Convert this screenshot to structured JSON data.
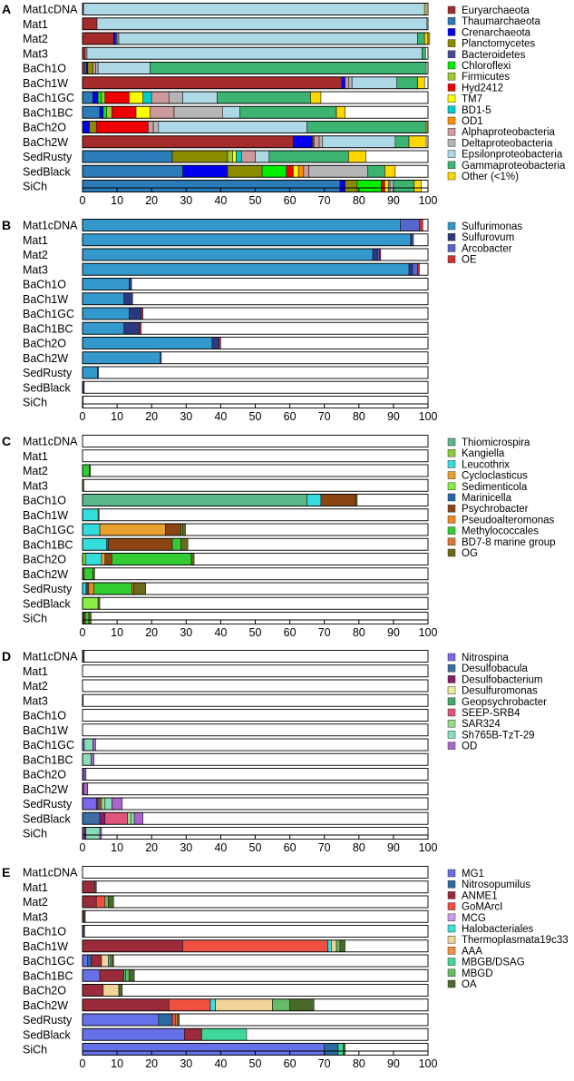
{
  "chart_data": [
    {
      "type": "bar",
      "letter": "A",
      "orientation": "horizontal",
      "stacked": true,
      "categories": [
        "Mat1cDNA",
        "Mat1",
        "Mat2",
        "Mat3",
        "BaCh1O",
        "BaCh1W",
        "BaCh1GC",
        "BaCh1BC",
        "BaCh2O",
        "BaCh2W",
        "SedRusty",
        "SedBlack",
        "SiCh"
      ],
      "xlim": [
        0,
        100
      ],
      "xticks": [
        "0",
        "10",
        "20",
        "30",
        "40",
        "50",
        "60",
        "70",
        "80",
        "90",
        "100"
      ],
      "legend_position": "right",
      "series": [
        {
          "name": "Euryarchaeota",
          "color": "#a52a2a",
          "values": [
            0,
            4.2,
            9.0,
            0.8,
            0.6,
            75.0,
            0,
            0,
            0,
            61.0,
            0,
            0,
            0
          ]
        },
        {
          "name": "Thaumarchaeota",
          "color": "#2b7bb9",
          "values": [
            0,
            0,
            0,
            0,
            0.5,
            0,
            3.0,
            5.0,
            0,
            0,
            26.0,
            29.0,
            74.5
          ]
        },
        {
          "name": "Crenarchaeota",
          "color": "#0000ee",
          "values": [
            0,
            0,
            0.5,
            0,
            0.4,
            1.0,
            1.5,
            1.0,
            2.0,
            5.5,
            0,
            13.0,
            1.5
          ]
        },
        {
          "name": "Planctomycetes",
          "color": "#8b8b00",
          "values": [
            0,
            0,
            0,
            0,
            1.5,
            0,
            0,
            0,
            2.0,
            0,
            16.0,
            10.0,
            3.5
          ]
        },
        {
          "name": "Bacteroidetes",
          "color": "#4a4a9a",
          "values": [
            0.3,
            0,
            0.5,
            0,
            0,
            0,
            0,
            0,
            0,
            0.5,
            0,
            0,
            0
          ]
        },
        {
          "name": "Chloroflexi",
          "color": "#00ee00",
          "values": [
            0,
            0,
            0,
            0,
            0,
            0,
            1.0,
            1.0,
            0,
            0,
            0,
            7.0,
            7.0
          ]
        },
        {
          "name": "Firmicutes",
          "color": "#9acd32",
          "values": [
            0,
            0,
            0,
            0,
            0,
            0,
            1.0,
            1.5,
            0,
            0,
            1.5,
            0,
            0
          ]
        },
        {
          "name": "Hyd2412",
          "color": "#ee0000",
          "values": [
            0,
            0,
            0,
            0,
            0,
            0,
            7.0,
            7.0,
            15.0,
            0,
            0,
            2.0,
            1.0
          ]
        },
        {
          "name": "TM7",
          "color": "#ffff00",
          "values": [
            0,
            0,
            0,
            0,
            0,
            0,
            4.0,
            4.0,
            0,
            0,
            1.0,
            1.5,
            1.0
          ]
        },
        {
          "name": "BD1-5",
          "color": "#00cdcd",
          "values": [
            0,
            0,
            0,
            0,
            0,
            0,
            2.5,
            0,
            0,
            0,
            1.5,
            0,
            0
          ]
        },
        {
          "name": "OD1",
          "color": "#ff8c00",
          "values": [
            0,
            0,
            0,
            0,
            0,
            0,
            0,
            0,
            0,
            0,
            0,
            1.5,
            0
          ]
        },
        {
          "name": "Alphaproteobacteria",
          "color": "#cd9b9b",
          "values": [
            0,
            0,
            0,
            0,
            0.8,
            1.0,
            5.0,
            7.0,
            1.5,
            1.5,
            4.0,
            1.5,
            0.5
          ]
        },
        {
          "name": "Deltaproteobacteria",
          "color": "#b5b5b5",
          "values": [
            0,
            0,
            0.5,
            0.5,
            0.7,
            1.0,
            4.0,
            14.0,
            1.5,
            1.0,
            0,
            17.0,
            1.0
          ]
        },
        {
          "name": "Epsilonproteobacteria",
          "color": "#add8e6",
          "values": [
            98.7,
            95.5,
            86.5,
            97.0,
            15.0,
            13.0,
            10.0,
            5.0,
            43.0,
            21.0,
            4.0,
            0,
            0
          ]
        },
        {
          "name": "Gammaproteobacteria",
          "color": "#3cb371",
          "values": [
            0,
            0,
            2.0,
            1.0,
            80.0,
            6.0,
            27.0,
            28.0,
            34.5,
            4.0,
            23.0,
            5.0,
            6.0
          ]
        },
        {
          "name": "Other (<1%)",
          "color": "#ffd700",
          "values": [
            0.5,
            0,
            1.5,
            0,
            0,
            2.0,
            3.0,
            2.5,
            0.5,
            5.0,
            5.0,
            3.0,
            2.0
          ]
        }
      ]
    },
    {
      "type": "bar",
      "letter": "B",
      "orientation": "horizontal",
      "stacked": true,
      "categories": [
        "Mat1cDNA",
        "Mat1",
        "Mat2",
        "Mat3",
        "BaCh1O",
        "BaCh1W",
        "BaCh1GC",
        "BaCh1BC",
        "BaCh2O",
        "BaCh2W",
        "SedRusty",
        "SedBlack",
        "SiCh"
      ],
      "xlim": [
        0,
        100
      ],
      "xticks": [
        "0",
        "10",
        "20",
        "30",
        "40",
        "50",
        "60",
        "70",
        "80",
        "90",
        "100"
      ],
      "legend_position": "right",
      "series": [
        {
          "name": "Sulfurimonas",
          "color": "#3399cc",
          "values": [
            92.0,
            95.0,
            84.0,
            94.5,
            13.5,
            12.0,
            13.5,
            12.0,
            37.5,
            22.5,
            4.3,
            0,
            0
          ]
        },
        {
          "name": "Sulfurovum",
          "color": "#2b3a80",
          "values": [
            0,
            0.3,
            1.5,
            1.0,
            0.7,
            2.5,
            3.5,
            4.5,
            2.0,
            0.3,
            0.3,
            0.5,
            0.2
          ]
        },
        {
          "name": "Arcobacter",
          "color": "#5566cc",
          "values": [
            5.5,
            0.5,
            0.5,
            1.5,
            0,
            0,
            0,
            0,
            0,
            0,
            0,
            0,
            0
          ]
        },
        {
          "name": "OE",
          "color": "#cc3333",
          "values": [
            1.0,
            0,
            0.3,
            0.5,
            0,
            0,
            0.5,
            0.5,
            0.5,
            0,
            0,
            0,
            0
          ]
        }
      ]
    },
    {
      "type": "bar",
      "letter": "C",
      "orientation": "horizontal",
      "stacked": true,
      "categories": [
        "Mat1cDNA",
        "Mat1",
        "Mat2",
        "Mat3",
        "BaCh1O",
        "BaCh1W",
        "BaCh1GC",
        "BaCh1BC",
        "BaCh2O",
        "BaCh2W",
        "SedRusty",
        "SedBlack",
        "SiCh"
      ],
      "xlim": [
        0,
        100
      ],
      "xticks": [
        "0",
        "10",
        "20",
        "30",
        "40",
        "50",
        "60",
        "70",
        "80",
        "90",
        "100"
      ],
      "legend_position": "right",
      "series": [
        {
          "name": "Thiomicrospira",
          "color": "#5cb88a",
          "values": [
            0,
            0,
            0,
            0,
            65.0,
            0,
            0,
            0,
            0,
            0,
            0,
            0,
            0
          ]
        },
        {
          "name": "Kangiella",
          "color": "#88cc33",
          "values": [
            0,
            0,
            0,
            0,
            0,
            0,
            0,
            0,
            1.0,
            0,
            0,
            0,
            0
          ]
        },
        {
          "name": "Leucothrix",
          "color": "#33dddd",
          "values": [
            0,
            0,
            0,
            0,
            4.0,
            4.5,
            5.0,
            7.0,
            4.5,
            0,
            1.0,
            0,
            0
          ]
        },
        {
          "name": "Cycloclasticus",
          "color": "#e8a030",
          "values": [
            0,
            0,
            0,
            0,
            0,
            0,
            19.0,
            0,
            1.0,
            0,
            0,
            0,
            0
          ]
        },
        {
          "name": "Sedimenticola",
          "color": "#88ee44",
          "values": [
            0,
            0,
            0,
            0,
            0,
            0,
            0,
            0,
            0,
            0,
            0,
            4.5,
            0
          ]
        },
        {
          "name": "Marinicella",
          "color": "#2266aa",
          "values": [
            0,
            0,
            0,
            0,
            0,
            0,
            0,
            0.5,
            0,
            0,
            0.3,
            0,
            0.3
          ]
        },
        {
          "name": "Psychrobacter",
          "color": "#8b4513",
          "values": [
            0,
            0,
            0,
            0,
            10.0,
            0,
            4.5,
            18.5,
            2.0,
            0.5,
            0.5,
            0,
            0.5
          ]
        },
        {
          "name": "Pseudoalteromonas",
          "color": "#ee8822",
          "values": [
            0,
            0,
            0,
            0,
            0,
            0,
            0,
            0,
            0,
            0,
            1.5,
            0,
            0
          ]
        },
        {
          "name": "Methylococcales",
          "color": "#33cc33",
          "values": [
            0,
            0,
            2.0,
            0,
            0,
            0,
            0.5,
            2.5,
            23.0,
            2.5,
            11.0,
            0,
            1.0
          ]
        },
        {
          "name": "BD7-8 marine group",
          "color": "#dd7733",
          "values": [
            0,
            0,
            0,
            0,
            0,
            0,
            0,
            0,
            0,
            0,
            0.5,
            0,
            0
          ]
        },
        {
          "name": "OG",
          "color": "#6b6b1a",
          "values": [
            0,
            0,
            0.3,
            0.4,
            0.5,
            0.3,
            0.8,
            2.0,
            0.8,
            0.5,
            3.5,
            0.5,
            0.7
          ]
        }
      ]
    },
    {
      "type": "bar",
      "letter": "D",
      "orientation": "horizontal",
      "stacked": true,
      "categories": [
        "Mat1cDNA",
        "Mat1",
        "Mat2",
        "Mat3",
        "BaCh1O",
        "BaCh1W",
        "BaCh1GC",
        "BaCh1BC",
        "BaCh2O",
        "BaCh2W",
        "SedRusty",
        "SedBlack",
        "SiCh"
      ],
      "xlim": [
        0,
        100
      ],
      "xticks": [
        "0",
        "10",
        "20",
        "30",
        "40",
        "50",
        "60",
        "70",
        "80",
        "90",
        "100"
      ],
      "legend_position": "right",
      "series": [
        {
          "name": "Nitrospina",
          "color": "#7b68ee",
          "values": [
            0.3,
            0,
            0,
            0,
            0,
            0,
            0.5,
            0,
            0.5,
            0,
            4.0,
            0,
            0.5
          ]
        },
        {
          "name": "Desulfobacula",
          "color": "#3a6ea5",
          "values": [
            0,
            0,
            0,
            0,
            0,
            0,
            0,
            0,
            0,
            0,
            0,
            5.0,
            0
          ]
        },
        {
          "name": "Desulfobacterium",
          "color": "#8b1a6b",
          "values": [
            0,
            0,
            0,
            0.2,
            0,
            0,
            0,
            0,
            0,
            0.3,
            0.5,
            1.5,
            0.5
          ]
        },
        {
          "name": "Desulfuromonas",
          "color": "#eeee99",
          "values": [
            0,
            0,
            0,
            0,
            0,
            0,
            0,
            0,
            0,
            0,
            0,
            0,
            0
          ]
        },
        {
          "name": "Geopsychrobacter",
          "color": "#44aa66",
          "values": [
            0,
            0,
            0,
            0,
            0,
            0,
            0,
            0,
            0,
            0,
            0.5,
            0,
            0
          ]
        },
        {
          "name": "SEEP-SRB4",
          "color": "#e0557a",
          "values": [
            0,
            0,
            0,
            0,
            0,
            0,
            0,
            0,
            0,
            0,
            0.5,
            6.5,
            0
          ]
        },
        {
          "name": "SAR324",
          "color": "#99dd88",
          "values": [
            0,
            0,
            0,
            0,
            0,
            0,
            0,
            0,
            0,
            0,
            1.0,
            1.0,
            0
          ]
        },
        {
          "name": "Sh765B-TzT-29",
          "color": "#88ddbb",
          "values": [
            0,
            0,
            0,
            0,
            0,
            0,
            2.5,
            2.5,
            0,
            0,
            2.0,
            1.0,
            4.0
          ]
        },
        {
          "name": "OD",
          "color": "#aa66cc",
          "values": [
            0.2,
            0,
            0,
            0,
            0,
            0,
            0.8,
            0.8,
            0.5,
            1.2,
            3.0,
            2.5,
            0.5
          ]
        }
      ]
    },
    {
      "type": "bar",
      "letter": "E",
      "orientation": "horizontal",
      "stacked": true,
      "categories": [
        "Mat1cDNA",
        "Mat1",
        "Mat2",
        "Mat3",
        "BaCh1O",
        "BaCh1W",
        "BaCh1GC",
        "BaCh1BC",
        "BaCh2O",
        "BaCh2W",
        "SedRusty",
        "SedBlack",
        "SiCh"
      ],
      "xlim": [
        0,
        100
      ],
      "xticks": [
        "0",
        "10",
        "20",
        "30",
        "40",
        "50",
        "60",
        "70",
        "80",
        "90",
        "100"
      ],
      "legend_position": "right",
      "series": [
        {
          "name": "MG1",
          "color": "#6670e8",
          "values": [
            0,
            0,
            0,
            0,
            0.3,
            0,
            1.5,
            5.0,
            0,
            0,
            22.0,
            29.5,
            70.0
          ]
        },
        {
          "name": "Nitrosopumilus",
          "color": "#2b6aa0",
          "values": [
            0,
            0,
            0,
            0,
            0.3,
            0,
            1.0,
            0,
            0,
            0,
            4.0,
            0,
            4.0
          ]
        },
        {
          "name": "ANME1",
          "color": "#9b2b3b",
          "values": [
            0,
            3.5,
            4.0,
            0.5,
            0,
            29.0,
            3.0,
            7.0,
            6.0,
            25.0,
            0,
            5.0,
            0
          ]
        },
        {
          "name": "GoMArcI",
          "color": "#f05040",
          "values": [
            0,
            0,
            2.5,
            0,
            0,
            42.0,
            0,
            0,
            0,
            12.0,
            1.0,
            0,
            0
          ]
        },
        {
          "name": "MCG",
          "color": "#cc99ee",
          "values": [
            0,
            0,
            0,
            0,
            0,
            0,
            0,
            0,
            0,
            0,
            0,
            0,
            0
          ]
        },
        {
          "name": "Halobacteriales",
          "color": "#40dddd",
          "values": [
            0,
            0,
            0,
            0,
            0,
            1.0,
            0,
            0,
            0,
            1.5,
            0,
            0,
            0
          ]
        },
        {
          "name": "Thermoplasmata19c33",
          "color": "#f2d49a",
          "values": [
            0,
            0,
            0,
            0,
            0,
            1.5,
            2.0,
            0,
            4.5,
            16.5,
            0,
            0,
            0
          ]
        },
        {
          "name": "AAA",
          "color": "#f09040",
          "values": [
            0,
            0,
            0,
            0,
            0,
            0,
            0,
            0,
            0,
            0,
            0.5,
            0,
            0
          ]
        },
        {
          "name": "MBGB/DSAG",
          "color": "#40d89a",
          "values": [
            0,
            0,
            0,
            0,
            0,
            0,
            0.5,
            0.5,
            0,
            0,
            0,
            13.0,
            1.5
          ]
        },
        {
          "name": "MBGD",
          "color": "#66bb66",
          "values": [
            0,
            0,
            1.0,
            0,
            0,
            1.0,
            0.5,
            1.0,
            0,
            5.0,
            0,
            0,
            0
          ]
        },
        {
          "name": "OA",
          "color": "#4a6a2a",
          "values": [
            0,
            0.5,
            1.5,
            0.3,
            0,
            1.5,
            0.5,
            1.5,
            1.0,
            7.0,
            0.5,
            0,
            0.5
          ]
        }
      ]
    }
  ]
}
